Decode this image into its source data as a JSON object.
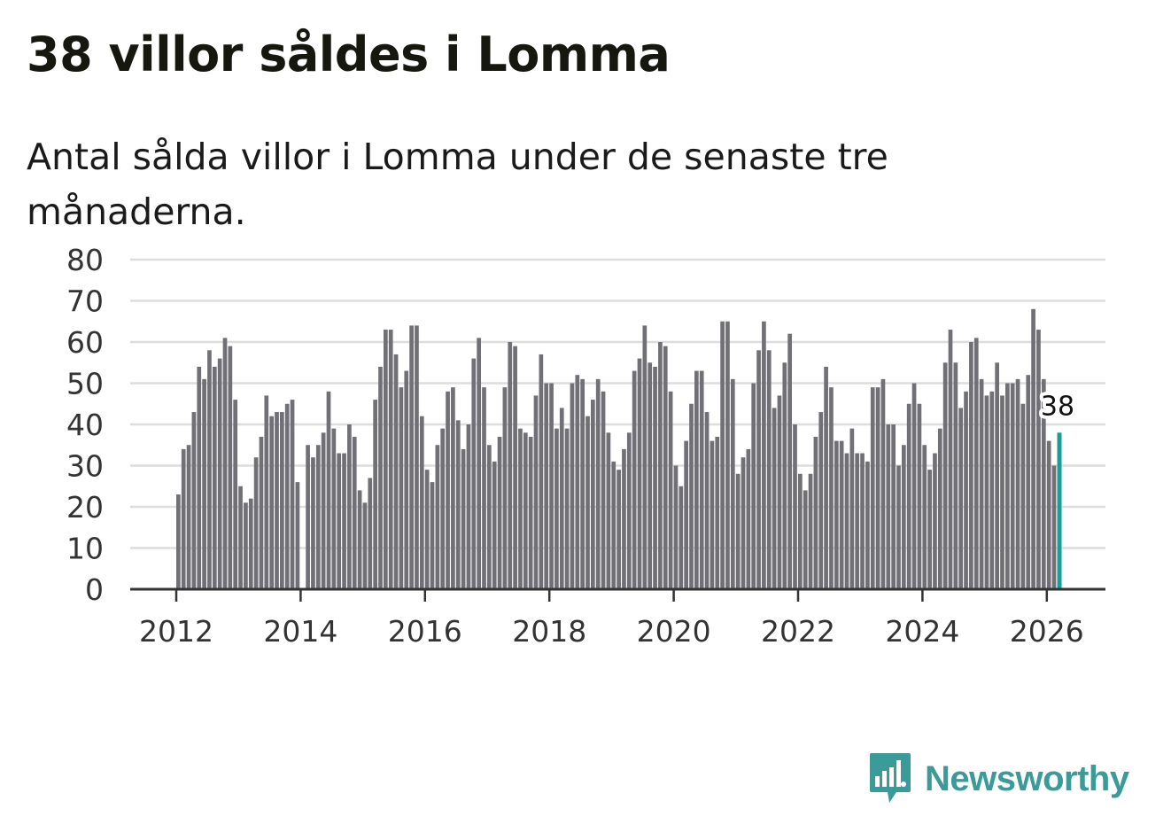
{
  "header": {
    "title": "38 villor såldes i Lomma",
    "subtitle": "Antal sålda villor i Lomma under de senaste tre månaderna."
  },
  "branding": {
    "logo_text": "Newsworthy",
    "icon": "bar-chart-speech-bubble-icon"
  },
  "colors": {
    "bar": "#717076",
    "highlight": "#1a9e97",
    "brand": "#3a9b98",
    "grid": "#dddddd",
    "axis": "#333333"
  },
  "chart_data": {
    "type": "bar",
    "title": "38 villor såldes i Lomma",
    "subtitle": "Antal sålda villor i Lomma under de senaste tre månaderna.",
    "xlabel": "",
    "ylabel": "",
    "ylim": [
      0,
      80
    ],
    "yticks": [
      "0",
      "10",
      "20",
      "30",
      "40",
      "50",
      "60",
      "70",
      "80"
    ],
    "xticks": [
      "2012",
      "2014",
      "2016",
      "2018",
      "2020",
      "2022",
      "2024",
      "2026"
    ],
    "x_start": "2012-01",
    "frequency": "monthly",
    "values": [
      23,
      34,
      35,
      43,
      54,
      51,
      58,
      54,
      56,
      61,
      59,
      46,
      25,
      21,
      22,
      32,
      37,
      47,
      42,
      43,
      43,
      45,
      46,
      26,
      0,
      35,
      32,
      35,
      38,
      48,
      39,
      33,
      33,
      40,
      37,
      24,
      21,
      27,
      46,
      54,
      63,
      63,
      57,
      49,
      53,
      64,
      64,
      42,
      29,
      26,
      35,
      39,
      48,
      49,
      41,
      34,
      40,
      56,
      61,
      49,
      35,
      31,
      37,
      49,
      60,
      59,
      39,
      38,
      37,
      47,
      57,
      50,
      50,
      39,
      44,
      39,
      50,
      52,
      51,
      42,
      46,
      51,
      48,
      38,
      31,
      29,
      34,
      38,
      53,
      56,
      64,
      55,
      54,
      60,
      59,
      48,
      30,
      25,
      36,
      45,
      53,
      53,
      43,
      36,
      37,
      65,
      65,
      51,
      28,
      32,
      34,
      50,
      58,
      65,
      58,
      44,
      47,
      55,
      62,
      40,
      28,
      24,
      28,
      37,
      43,
      54,
      49,
      36,
      36,
      33,
      39,
      33,
      33,
      31,
      49,
      49,
      51,
      40,
      40,
      30,
      35,
      45,
      50,
      45,
      35,
      29,
      33,
      39,
      55,
      63,
      55,
      44,
      48,
      60,
      61,
      51,
      47,
      48,
      55,
      47,
      50,
      50,
      51,
      45,
      52,
      68,
      63,
      51,
      36,
      30,
      38
    ],
    "highlight_index": 170,
    "highlight_label": "38"
  }
}
